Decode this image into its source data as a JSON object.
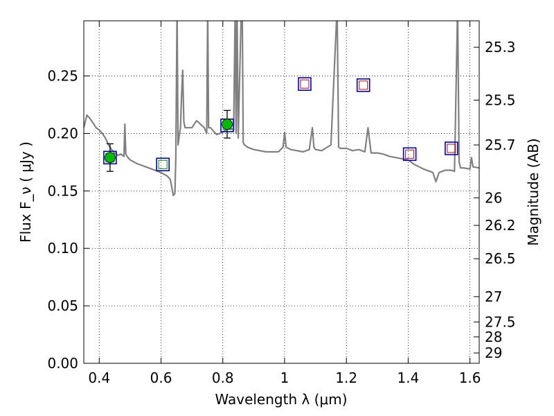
{
  "chart_data": {
    "type": "line",
    "xlabel": "Wavelength  λ (μm)",
    "ylabel": "Flux  F_ν  ( μJy )",
    "ylabel_right": "Magnitude (AB)",
    "xlim": [
      0.35,
      1.63
    ],
    "ylim": [
      0.0,
      0.298
    ],
    "grid": true,
    "x_ticks": [
      0.4,
      0.6,
      0.8,
      1.0,
      1.2,
      1.4,
      1.6
    ],
    "x_tick_labels": [
      "0.4",
      "0.6",
      "0.8",
      "1",
      "1.2",
      "1.4",
      "1.6"
    ],
    "y_ticks": [
      0.0,
      0.05,
      0.1,
      0.15,
      0.2,
      0.25
    ],
    "y_tick_labels": [
      "0.00",
      "0.05",
      "0.10",
      "0.15",
      "0.20",
      "0.25"
    ],
    "right_ticks": [
      {
        "label": "25.3",
        "flux": 0.275
      },
      {
        "label": "25.5",
        "flux": 0.229
      },
      {
        "label": "25.7",
        "flux": 0.19
      },
      {
        "label": "26",
        "flux": 0.144
      },
      {
        "label": "26.2",
        "flux": 0.12
      },
      {
        "label": "26.5",
        "flux": 0.091
      },
      {
        "label": "27",
        "flux": 0.058
      },
      {
        "label": "27.5",
        "flux": 0.036
      },
      {
        "label": "28",
        "flux": 0.023
      },
      {
        "label": "29",
        "flux": 0.009
      }
    ],
    "series": [
      {
        "kind": "spectrum",
        "color": "#808080",
        "x": [
          0.35,
          0.36,
          0.37,
          0.38,
          0.39,
          0.4,
          0.41,
          0.42,
          0.43,
          0.44,
          0.45,
          0.46,
          0.47,
          0.48,
          0.483,
          0.486,
          0.49,
          0.5,
          0.52,
          0.54,
          0.56,
          0.58,
          0.6,
          0.62,
          0.63,
          0.64,
          0.645,
          0.648,
          0.652,
          0.655,
          0.66,
          0.663,
          0.666,
          0.67,
          0.674,
          0.678,
          0.7,
          0.715,
          0.72,
          0.74,
          0.748,
          0.751,
          0.754,
          0.76,
          0.78,
          0.8,
          0.82,
          0.835,
          0.84,
          0.843,
          0.846,
          0.85,
          0.86,
          0.863,
          0.866,
          0.87,
          0.88,
          0.9,
          0.92,
          0.94,
          0.96,
          0.98,
          0.995,
          1.0,
          1.005,
          1.02,
          1.04,
          1.06,
          1.08,
          1.09,
          1.095,
          1.1,
          1.12,
          1.15,
          1.17,
          1.175,
          1.18,
          1.2,
          1.22,
          1.24,
          1.26,
          1.27,
          1.28,
          1.3,
          1.32,
          1.34,
          1.36,
          1.38,
          1.4,
          1.42,
          1.45,
          1.47,
          1.48,
          1.49,
          1.5,
          1.52,
          1.54,
          1.55,
          1.56,
          1.565,
          1.57,
          1.58,
          1.6,
          1.605,
          1.61,
          1.63
        ],
        "y": [
          0.205,
          0.216,
          0.213,
          0.209,
          0.205,
          0.203,
          0.2,
          0.196,
          0.19,
          0.186,
          0.183,
          0.181,
          0.182,
          0.18,
          0.208,
          0.182,
          0.18,
          0.177,
          0.174,
          0.172,
          0.17,
          0.168,
          0.166,
          0.163,
          0.16,
          0.146,
          0.148,
          0.18,
          0.31,
          0.19,
          0.2,
          0.205,
          0.23,
          0.255,
          0.21,
          0.205,
          0.205,
          0.211,
          0.21,
          0.205,
          0.2,
          0.31,
          0.205,
          0.205,
          0.199,
          0.201,
          0.205,
          0.203,
          0.31,
          0.2,
          0.31,
          0.196,
          0.31,
          0.31,
          0.192,
          0.19,
          0.188,
          0.186,
          0.185,
          0.184,
          0.184,
          0.184,
          0.188,
          0.201,
          0.188,
          0.186,
          0.185,
          0.184,
          0.186,
          0.205,
          0.188,
          0.186,
          0.185,
          0.19,
          0.31,
          0.188,
          0.187,
          0.187,
          0.185,
          0.186,
          0.184,
          0.205,
          0.183,
          0.183,
          0.182,
          0.18,
          0.179,
          0.178,
          0.177,
          0.173,
          0.169,
          0.167,
          0.166,
          0.158,
          0.166,
          0.168,
          0.168,
          0.167,
          0.31,
          0.175,
          0.17,
          0.17,
          0.169,
          0.179,
          0.171,
          0.17
        ]
      },
      {
        "kind": "model_photometry",
        "points": [
          {
            "x": 0.435,
            "y": 0.179,
            "box_color": "#0000cc",
            "inner": "#008800"
          },
          {
            "x": 0.606,
            "y": 0.173,
            "box_color": "#0000cc",
            "inner": "#008800"
          },
          {
            "x": 0.814,
            "y": 0.207,
            "box_color": "#0000cc",
            "inner": "#008800"
          },
          {
            "x": 1.065,
            "y": 0.243,
            "box_color": "#0000cc",
            "inner": "#cc0000"
          },
          {
            "x": 1.255,
            "y": 0.242,
            "box_color": "#0000cc",
            "inner": "#cc0000"
          },
          {
            "x": 1.405,
            "y": 0.182,
            "box_color": "#0000cc",
            "inner": "#cc0000"
          },
          {
            "x": 1.54,
            "y": 0.187,
            "box_color": "#0000cc",
            "inner": "#cc0000"
          }
        ]
      },
      {
        "kind": "observed_photometry",
        "color": "#00bb00",
        "points": [
          {
            "x": 0.435,
            "y": 0.179,
            "yerr": 0.012
          },
          {
            "x": 0.814,
            "y": 0.208,
            "yerr": 0.012
          }
        ]
      }
    ]
  }
}
